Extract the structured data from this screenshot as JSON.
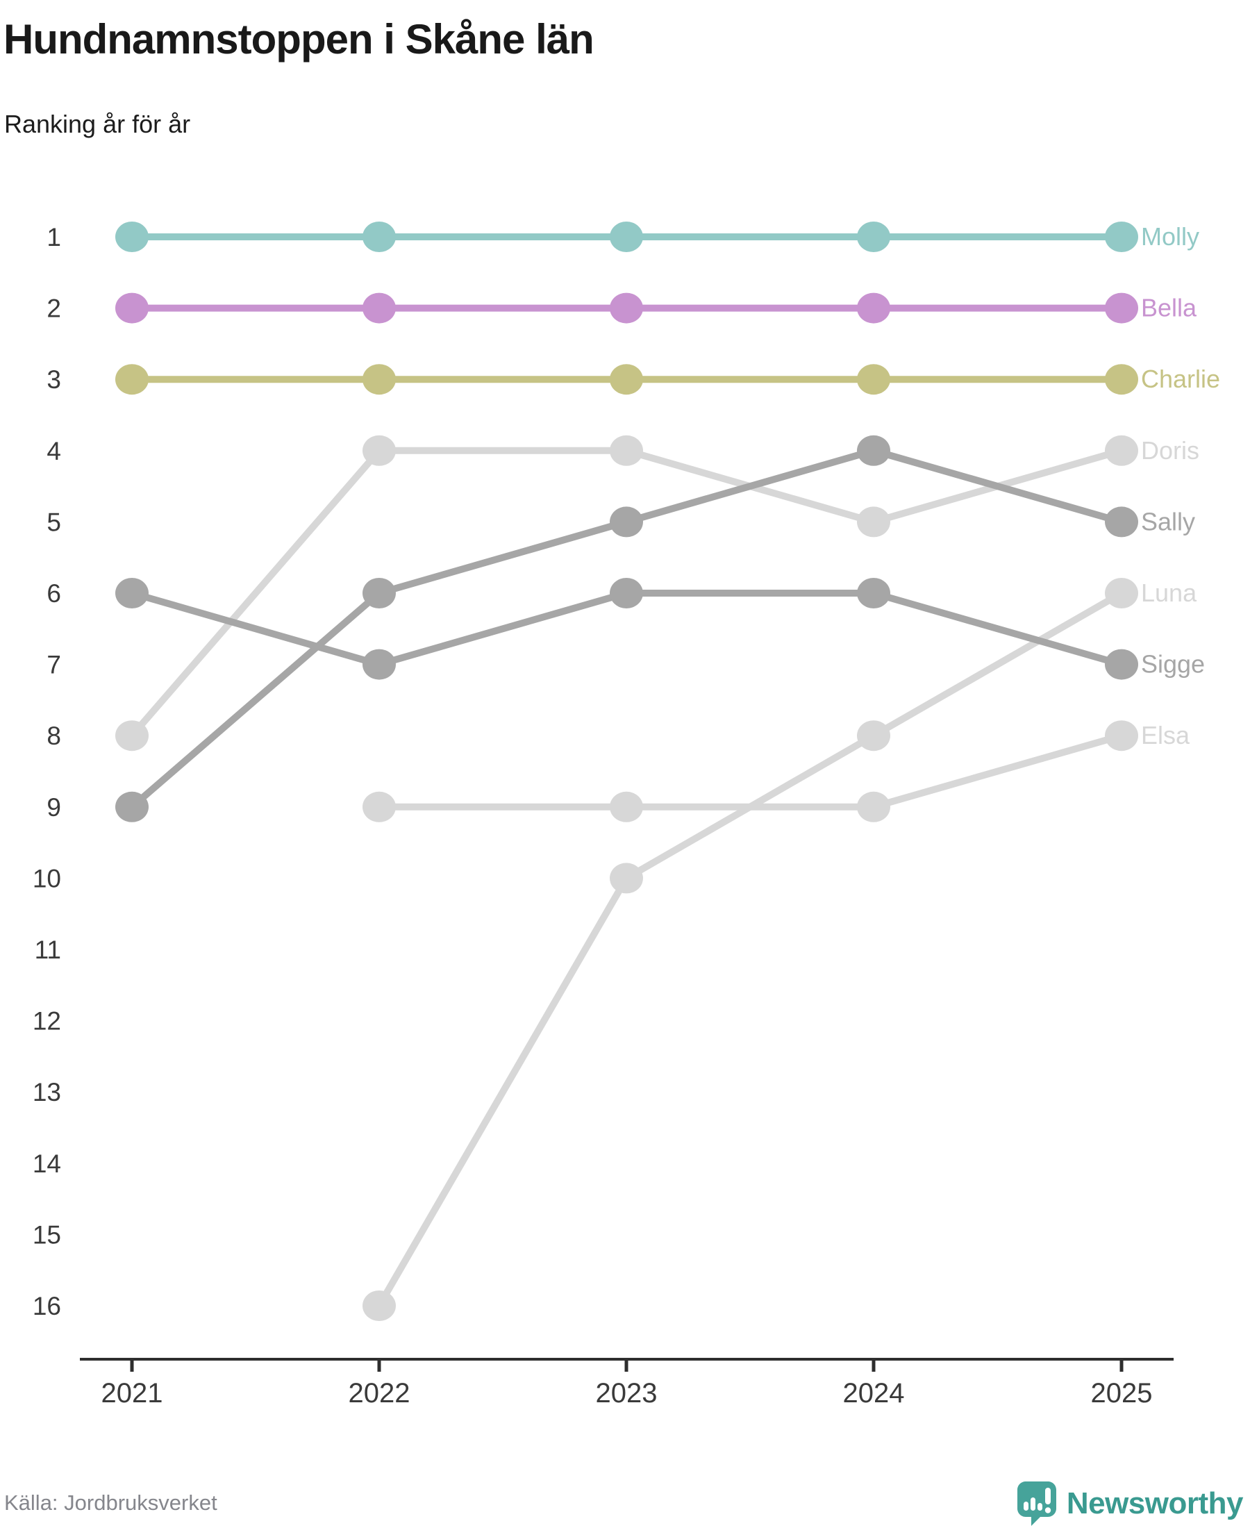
{
  "header": {
    "title": "Hundnamnstoppen i Skåne län",
    "subtitle": "Ranking år för år"
  },
  "footer": {
    "source": "Källa: Jordbruksverket",
    "brand": "Newsworthy"
  },
  "colors": {
    "axis": "#2e2e2e",
    "tick_label": "#3a3a3a",
    "logo_teal": "#46a39a",
    "wordmark_teal": "#3a9a90"
  },
  "chart_data": {
    "type": "line",
    "variant": "bump-ranking",
    "title": "Hundnamnstoppen i Skåne län",
    "subtitle": "Ranking år för år",
    "x": [
      "2021",
      "2022",
      "2023",
      "2024",
      "2025"
    ],
    "rank_ticks": [
      1,
      2,
      3,
      4,
      5,
      6,
      7,
      8,
      9,
      10,
      11,
      12,
      13,
      14,
      15,
      16
    ],
    "ylim": [
      1,
      16
    ],
    "y_inverted": true,
    "grid": false,
    "legend_position": "right-end-labels",
    "series": [
      {
        "name": "Molly",
        "color": "#92c9c6",
        "z": 3,
        "ranks": [
          1,
          1,
          1,
          1,
          1
        ]
      },
      {
        "name": "Bella",
        "color": "#c893d0",
        "z": 3,
        "ranks": [
          2,
          2,
          2,
          2,
          2
        ]
      },
      {
        "name": "Charlie",
        "color": "#c6c385",
        "z": 3,
        "ranks": [
          3,
          3,
          3,
          3,
          3
        ]
      },
      {
        "name": "Doris",
        "color": "#d7d7d7",
        "z": 1,
        "ranks": [
          8,
          4,
          4,
          5,
          4
        ]
      },
      {
        "name": "Sally",
        "color": "#a6a6a6",
        "z": 2,
        "ranks": [
          9,
          6,
          5,
          4,
          5
        ]
      },
      {
        "name": "Luna",
        "color": "#d7d7d7",
        "z": 1,
        "ranks": [
          null,
          16,
          10,
          8,
          6
        ]
      },
      {
        "name": "Sigge",
        "color": "#a6a6a6",
        "z": 2,
        "ranks": [
          6,
          7,
          6,
          6,
          7
        ]
      },
      {
        "name": "Elsa",
        "color": "#d7d7d7",
        "z": 1,
        "ranks": [
          null,
          9,
          9,
          9,
          8
        ]
      }
    ]
  }
}
